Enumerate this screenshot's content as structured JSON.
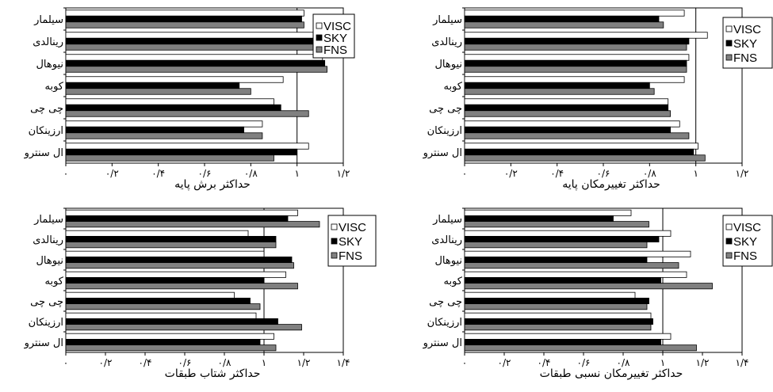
{
  "chart_data": [
    {
      "type": "bar",
      "orientation": "horizontal",
      "xlabel": "حداکثر برش پایه",
      "xlim": [
        0,
        1.2
      ],
      "xticks": [
        "۰",
        "۰/۲",
        "۰/۴",
        "۰/۶",
        "۰/۸",
        "۱",
        "۱/۲"
      ],
      "reference_line": 1,
      "categories": [
        "سیلمار",
        "رینالدی",
        "نیوهال",
        "کوبه",
        "چی چی",
        "ارزینکان",
        "ال سنترو"
      ],
      "legend": "right",
      "series": [
        {
          "name": "VISC",
          "color": "#ffffff",
          "values": [
            1.03,
            1.07,
            1.11,
            0.94,
            0.9,
            0.85,
            1.05
          ]
        },
        {
          "name": "SKY",
          "color": "#000000",
          "values": [
            1.02,
            1.15,
            1.12,
            0.75,
            0.93,
            0.77,
            1.0
          ]
        },
        {
          "name": "FNS",
          "color": "#808080",
          "values": [
            1.03,
            1.12,
            1.13,
            0.8,
            1.05,
            0.85,
            0.9
          ]
        }
      ]
    },
    {
      "type": "bar",
      "orientation": "horizontal",
      "xlabel": "حداکثر تغییرمکان پایه",
      "xlim": [
        0,
        1.2
      ],
      "xticks": [
        "۰",
        "۰/۲",
        "۰/۴",
        "۰/۶",
        "۰/۸",
        "۱",
        "۱/۲"
      ],
      "reference_line": 1,
      "categories": [
        "سیلمار",
        "رینالدی",
        "نیوهال",
        "کوبه",
        "چی چی",
        "ارزینکان",
        "ال سنترو"
      ],
      "legend": "right",
      "series": [
        {
          "name": "VISC",
          "color": "#ffffff",
          "values": [
            0.95,
            1.05,
            0.97,
            0.95,
            0.88,
            0.93,
            1.01
          ]
        },
        {
          "name": "SKY",
          "color": "#000000",
          "values": [
            0.84,
            0.97,
            0.96,
            0.8,
            0.88,
            0.89,
            0.99
          ]
        },
        {
          "name": "FNS",
          "color": "#808080",
          "values": [
            0.86,
            0.96,
            0.96,
            0.82,
            0.89,
            0.97,
            1.04
          ]
        }
      ]
    },
    {
      "type": "bar",
      "orientation": "horizontal",
      "xlabel": "حداکثر شتاب طبقات",
      "xlim": [
        0,
        1.4
      ],
      "xticks": [
        "۰",
        "۰/۲",
        "۰/۴",
        "۰/۶",
        "۰/۸",
        "۱",
        "۱/۲",
        "۱/۴"
      ],
      "reference_line": 1,
      "categories": [
        "سیلمار",
        "رینالدی",
        "نیوهال",
        "کوبه",
        "چی چی",
        "ارزینکان",
        "ال سنترو"
      ],
      "legend": "right",
      "series": [
        {
          "name": "VISC",
          "color": "#ffffff",
          "values": [
            1.17,
            0.92,
            1.0,
            1.11,
            0.85,
            0.96,
            1.05
          ]
        },
        {
          "name": "SKY",
          "color": "#000000",
          "values": [
            1.12,
            1.06,
            1.14,
            1.0,
            0.93,
            1.07,
            0.98
          ]
        },
        {
          "name": "FNS",
          "color": "#808080",
          "values": [
            1.28,
            1.06,
            1.15,
            1.17,
            0.98,
            1.19,
            1.06
          ]
        }
      ]
    },
    {
      "type": "bar",
      "orientation": "horizontal",
      "xlabel": "حداکثر تغییرمکان نسبی طبقات",
      "xlim": [
        0,
        1.4
      ],
      "xticks": [
        "۰",
        "۰/۲",
        "۰/۴",
        "۰/۶",
        "۰/۸",
        "۱",
        "۱/۲",
        "۱/۴"
      ],
      "reference_line": 1,
      "categories": [
        "سیلمار",
        "رینالدی",
        "نیوهال",
        "کوبه",
        "چی چی",
        "ارزینکان",
        "ال سنترو"
      ],
      "legend": "right",
      "series": [
        {
          "name": "VISC",
          "color": "#ffffff",
          "values": [
            0.84,
            1.04,
            1.14,
            1.12,
            0.86,
            0.94,
            1.04
          ]
        },
        {
          "name": "SKY",
          "color": "#000000",
          "values": [
            0.75,
            0.98,
            0.92,
            0.99,
            0.93,
            0.95,
            0.99
          ]
        },
        {
          "name": "FNS",
          "color": "#808080",
          "values": [
            0.93,
            0.92,
            1.08,
            1.25,
            0.92,
            0.94,
            1.17
          ]
        }
      ]
    }
  ]
}
